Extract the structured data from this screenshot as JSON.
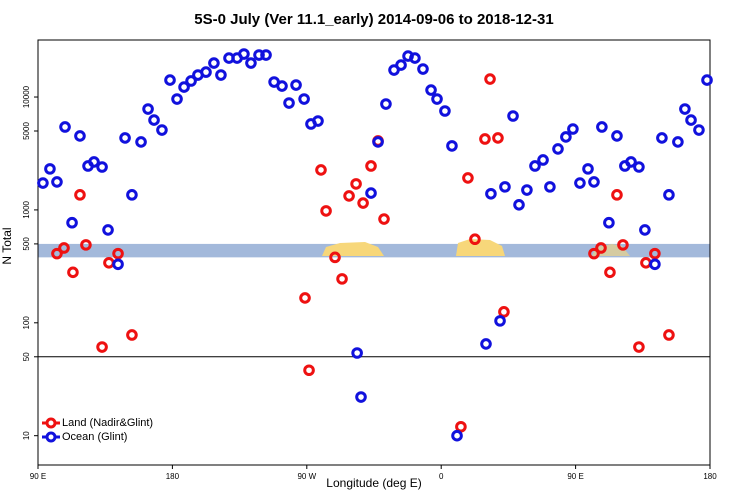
{
  "chart_data": {
    "type": "scatter",
    "title": "5S-0 July (Ver 11.1_early)   2014-09-06 to 2018-12-31",
    "x_label": "Longitude (deg E)",
    "y_label": "N Total",
    "log_y": true,
    "xlim": [
      90,
      540
    ],
    "ylim": [
      5.5,
      32000
    ],
    "xticks": [
      {
        "value": 90,
        "label": "90 E"
      },
      180,
      {
        "value": 270,
        "label": "90 W"
      },
      {
        "value": 360,
        "label": "0"
      },
      {
        "value": 450,
        "label": "90 E"
      },
      {
        "value": 540,
        "label": "180"
      }
    ],
    "yticks": [
      10,
      50,
      100,
      500,
      1000,
      5000,
      10000
    ],
    "hline": 50,
    "band": [
      380,
      500
    ],
    "band_color": "#a3b9db",
    "legend": "bottom-left",
    "series": [
      {
        "name": "Land (Nadir&Glint)",
        "color": "#ee1111",
        "x": [
          102.7,
          107.4,
          113.4,
          118.1,
          122.1,
          132.9,
          137.5,
          143.6,
          152.9,
          268.8,
          271.5,
          279.5,
          282.9,
          288.9,
          293.6,
          298.3,
          303.0,
          307.7,
          313.0,
          317.7,
          321.7,
          373.2,
          377.9,
          382.6,
          389.3,
          392.7,
          398.0,
          402.0,
          462.3,
          467.0,
          473.0,
          477.7,
          481.7,
          492.4,
          497.1,
          503.1,
          512.5
        ],
        "values": [
          410,
          460,
          280,
          1360,
          490,
          61,
          340,
          410,
          78,
          166,
          38,
          2260,
          980,
          380,
          245,
          1330,
          1700,
          1150,
          2450,
          4080,
          830,
          12,
          1920,
          550,
          4250,
          14430,
          4340,
          125,
          410,
          460,
          280,
          1360,
          490,
          61,
          340,
          410,
          78
        ]
      },
      {
        "name": "Ocean (Glint)",
        "color": "#1111dd",
        "x": [
          93.3,
          98.0,
          102.7,
          108.1,
          112.8,
          118.1,
          123.5,
          127.5,
          132.9,
          136.9,
          143.6,
          148.3,
          152.9,
          159.0,
          163.7,
          167.7,
          173.0,
          178.4,
          183.1,
          187.8,
          192.5,
          197.1,
          202.5,
          207.8,
          212.5,
          217.9,
          223.3,
          227.9,
          232.6,
          238.0,
          242.7,
          248.1,
          253.4,
          258.1,
          262.8,
          268.2,
          272.8,
          277.5,
          303.7,
          306.3,
          313.0,
          317.7,
          323.0,
          328.4,
          333.1,
          337.8,
          342.4,
          347.8,
          353.2,
          357.2,
          362.5,
          367.2,
          370.6,
          390.0,
          393.3,
          399.4,
          402.7,
          408.1,
          412.1,
          417.4,
          422.8,
          428.2,
          432.8,
          438.2,
          443.5,
          448.2,
          452.9,
          458.3,
          462.3,
          467.6,
          472.3,
          477.7,
          483.0,
          487.1,
          492.4,
          496.4,
          503.1,
          507.8,
          512.5,
          518.5,
          523.2,
          527.3,
          532.6,
          538.0
        ],
        "values": [
          1730,
          2310,
          1770,
          5430,
          770,
          4520,
          2450,
          2660,
          2400,
          665,
          330,
          4340,
          1360,
          4000,
          7830,
          6250,
          5100,
          14130,
          9600,
          12250,
          13870,
          15660,
          16630,
          20000,
          15660,
          22130,
          22130,
          24040,
          20000,
          23550,
          23550,
          13580,
          12510,
          8850,
          12770,
          9600,
          5770,
          6130,
          54,
          22,
          1410,
          4000,
          8670,
          17340,
          19190,
          23060,
          22130,
          17700,
          11530,
          9600,
          7520,
          3690,
          10,
          65,
          1390,
          104,
          1600,
          6790,
          1110,
          1500,
          2450,
          2770,
          1600,
          3470,
          4430,
          5210,
          1730,
          2310,
          1770,
          5430,
          770,
          4520,
          2450,
          2660,
          2400,
          665,
          330,
          4340,
          1360,
          4000,
          7830,
          6250,
          5100,
          14130
        ]
      }
    ]
  }
}
